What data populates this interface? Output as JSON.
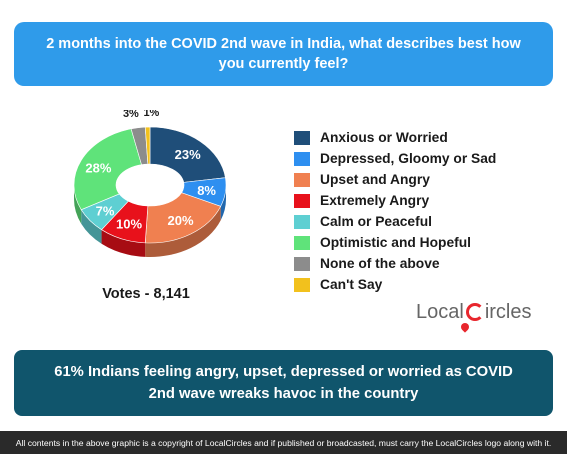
{
  "question": "2 months into the COVID 2nd wave in India, what describes best how you currently feel?",
  "votes_label": "Votes - 8,141",
  "logo": {
    "text_before": "Local",
    "text_after": "ircles"
  },
  "banner": "61% Indians feeling angry, upset, depressed or worried as COVID 2nd wave wreaks havoc in the country",
  "footer": "All contents in the above graphic is a copyright of LocalCircles and if published or broadcasted, must carry the LocalCircles logo along with it.",
  "colors": {
    "question_bg": "#2f9bea",
    "banner_bg": "#10556c",
    "footer_bg": "#2a2a2a",
    "logo_red": "#e8262d"
  },
  "chart_data": {
    "type": "pie",
    "style": "3d-donut",
    "legend_position": "right",
    "categories": [
      "Anxious or Worried",
      "Depressed, Gloomy or Sad",
      "Upset and Angry",
      "Extremely Angry",
      "Calm or Peaceful",
      "Optimistic and Hopeful",
      "None of the above",
      "Can't Say"
    ],
    "values": [
      23,
      8,
      20,
      10,
      7,
      28,
      3,
      1
    ],
    "labels": [
      "23%",
      "8%",
      "20%",
      "10%",
      "7%",
      "28%",
      "3%",
      "1%"
    ],
    "colors": [
      "#1f4e79",
      "#2e8ff0",
      "#f08050",
      "#e8111b",
      "#5ecfd2",
      "#5fe37a",
      "#8c8c8c",
      "#f2c11d"
    ]
  }
}
